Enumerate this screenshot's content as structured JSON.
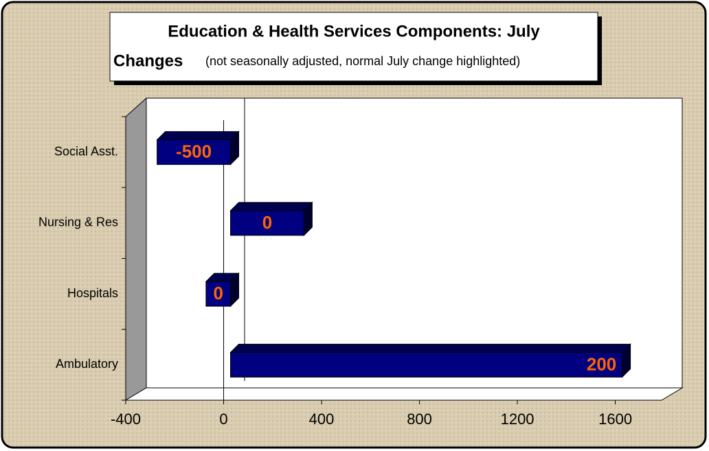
{
  "chart_data": {
    "type": "hbar",
    "title": "Education & Health Services Components: July",
    "title_line2": "Changes",
    "subtitle": "(not seasonally adjusted, normal July change highlighted)",
    "categories": [
      "Social Asst.",
      "Nursing & Res",
      "Hospitals",
      "Ambulatory"
    ],
    "values": [
      -300,
      300,
      -100,
      1600
    ],
    "bar_labels": [
      "-500",
      "0",
      "0",
      "200"
    ],
    "color": "#000080",
    "label_color": "#ff6600",
    "xlim": [
      -400,
      1800
    ],
    "xticks": [
      -400,
      0,
      400,
      800,
      1200,
      1600
    ]
  }
}
